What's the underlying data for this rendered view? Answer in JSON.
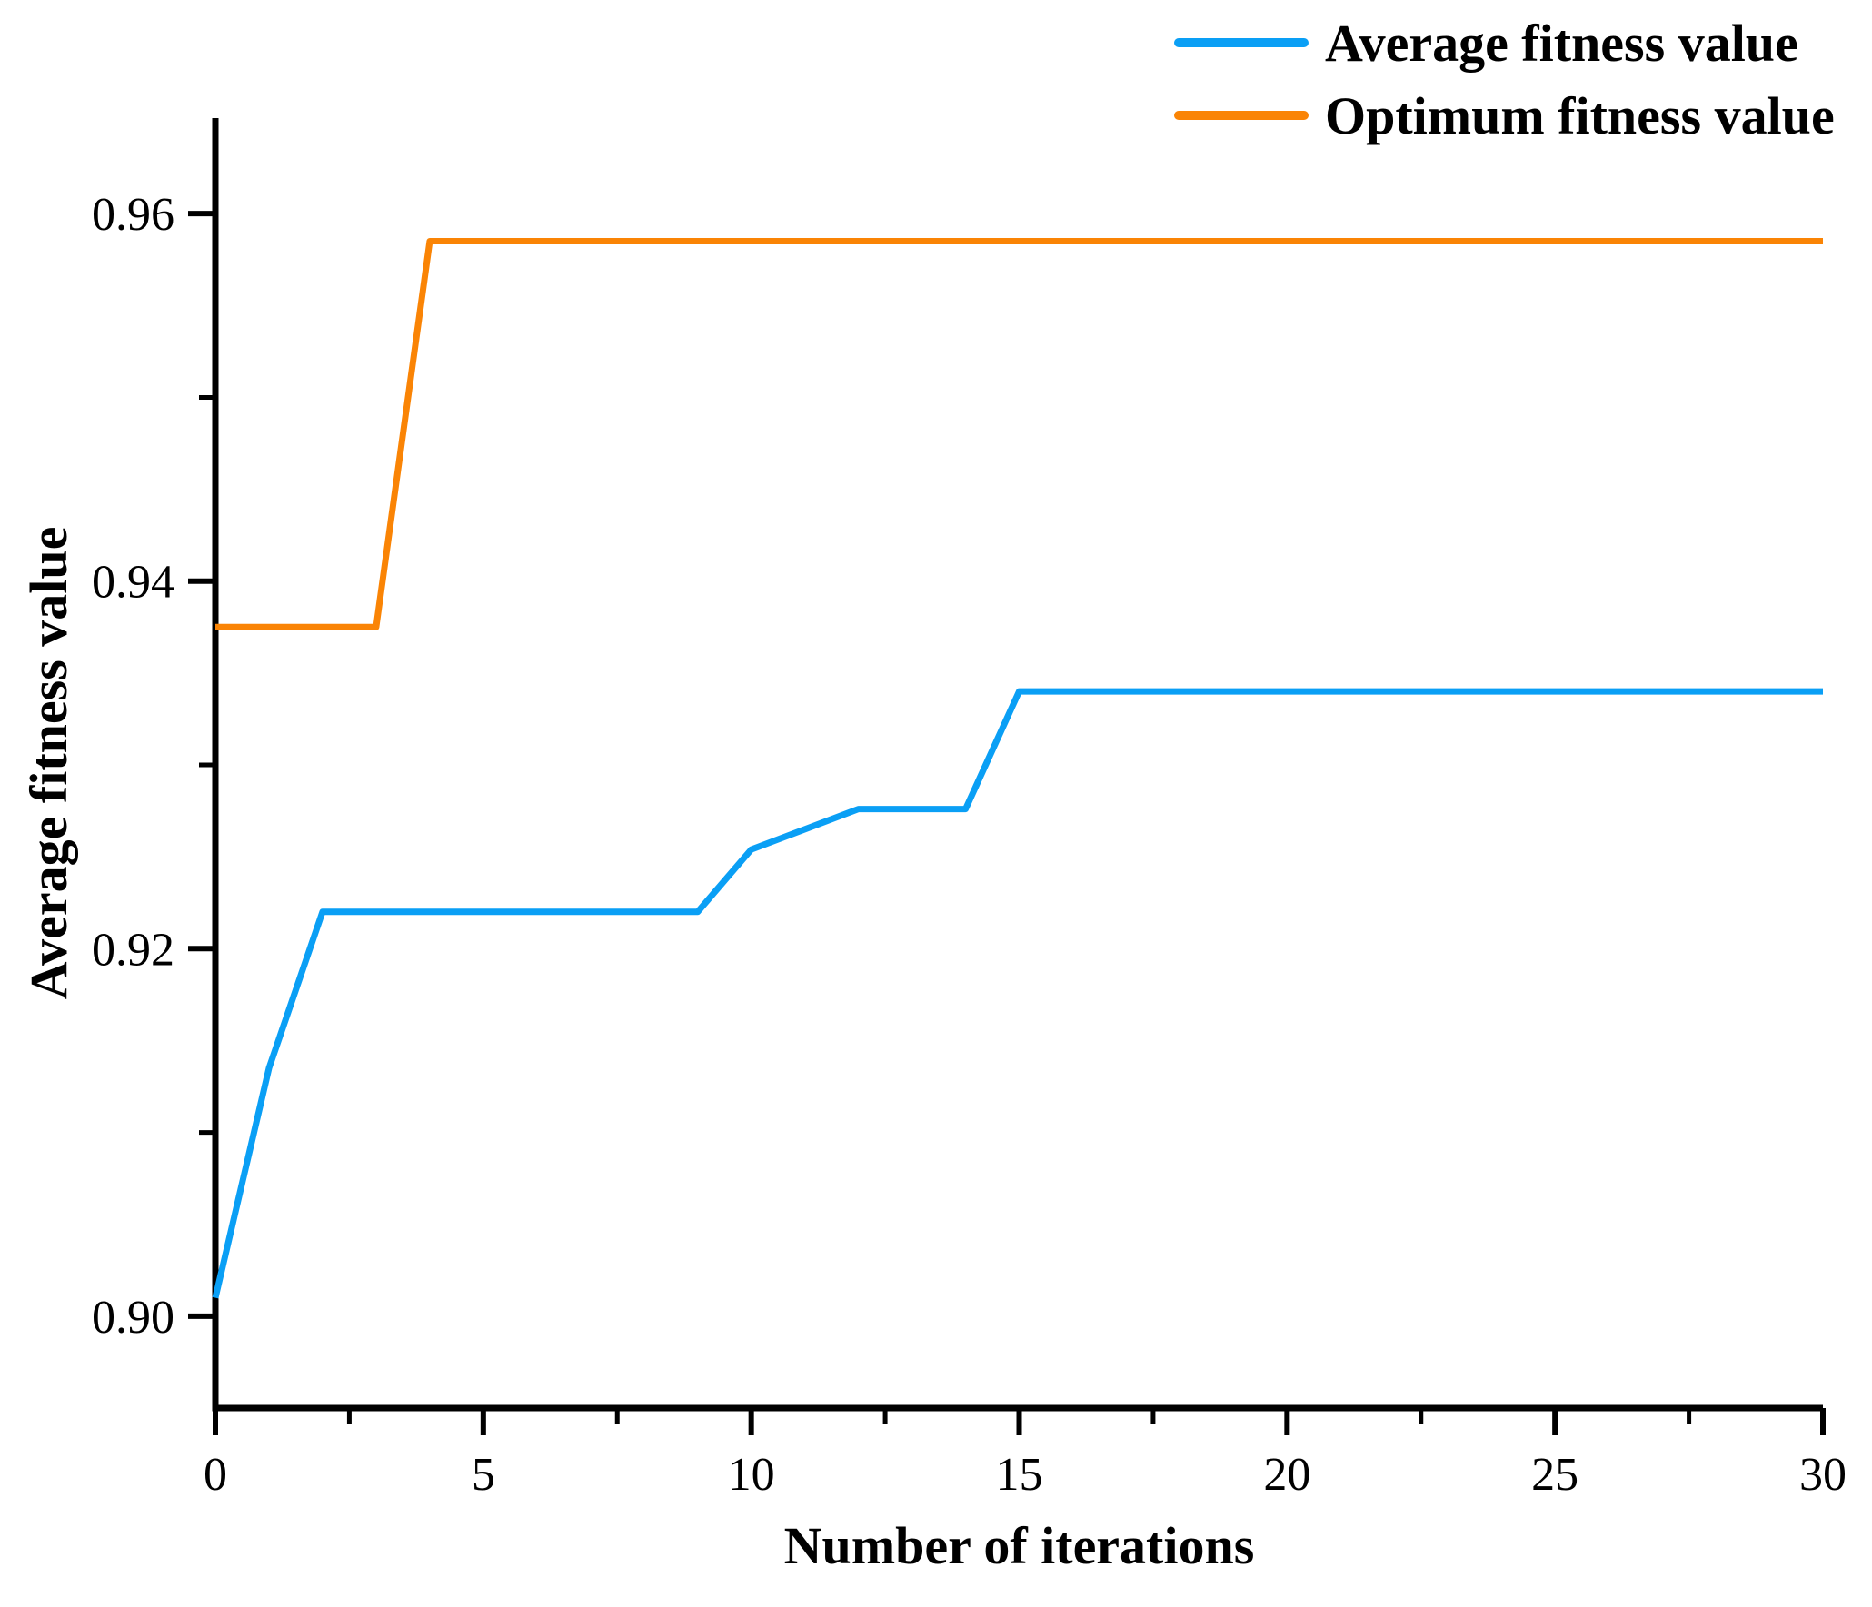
{
  "chart_data": {
    "type": "line",
    "title": "",
    "xlabel": "Number of iterations",
    "ylabel": "Average fitness value",
    "xlim": [
      0,
      30
    ],
    "ylim": [
      0.895,
      0.9652
    ],
    "grid": false,
    "legend_position": "top-right",
    "x_major_ticks": [
      {
        "v": 0,
        "label": "0"
      },
      {
        "v": 5,
        "label": "5"
      },
      {
        "v": 10,
        "label": "10"
      },
      {
        "v": 15,
        "label": "15"
      },
      {
        "v": 20,
        "label": "20"
      },
      {
        "v": 25,
        "label": "25"
      },
      {
        "v": 30,
        "label": "30"
      }
    ],
    "x_minor_ticks": [
      2.5,
      7.5,
      12.5,
      17.5,
      22.5,
      27.5
    ],
    "y_major_ticks": [
      {
        "v": 0.9,
        "label": "0.90"
      },
      {
        "v": 0.92,
        "label": "0.92"
      },
      {
        "v": 0.94,
        "label": "0.94"
      },
      {
        "v": 0.96,
        "label": "0.96"
      }
    ],
    "y_minor_ticks": [
      0.91,
      0.93,
      0.95
    ],
    "series": [
      {
        "name": "Average fitness value",
        "color": "#0A9FF5",
        "points": [
          [
            0,
            0.901
          ],
          [
            1,
            0.9135
          ],
          [
            2,
            0.922
          ],
          [
            9,
            0.922
          ],
          [
            10,
            0.9254
          ],
          [
            12,
            0.9276
          ],
          [
            14,
            0.9276
          ],
          [
            15,
            0.934
          ],
          [
            30,
            0.934
          ]
        ]
      },
      {
        "name": "Optimum fitness value",
        "color": "#FA8405",
        "points": [
          [
            0,
            0.9375
          ],
          [
            3,
            0.9375
          ],
          [
            4,
            0.9585
          ],
          [
            30,
            0.9585
          ]
        ]
      }
    ]
  },
  "legend": {
    "items": [
      {
        "label": "Average fitness value",
        "color": "#0A9FF5"
      },
      {
        "label": "Optimum fitness value",
        "color": "#FA8405"
      }
    ]
  },
  "axis_color": "#000000"
}
